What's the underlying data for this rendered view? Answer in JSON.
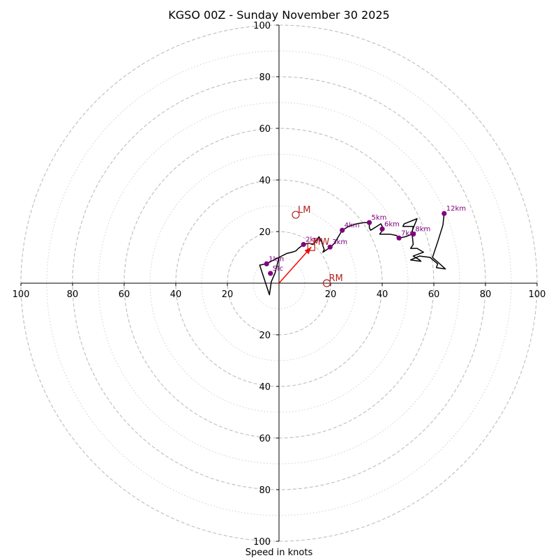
{
  "chart_data": {
    "type": "hodograph",
    "title": "KGSO 00Z - Sunday November 30 2025",
    "xlabel": "Speed in knots",
    "range": 100,
    "major_rings": [
      20,
      40,
      60,
      80,
      100
    ],
    "minor_rings": [
      10,
      30,
      50,
      70,
      90
    ],
    "ticks": [
      {
        "value": 100,
        "label": "100"
      },
      {
        "value": 80,
        "label": "80"
      },
      {
        "value": 60,
        "label": "60"
      },
      {
        "value": 40,
        "label": "40"
      },
      {
        "value": 20,
        "label": "20"
      }
    ],
    "trace_color": "#000000",
    "point_color": "#800080",
    "marker_color": "#b22222",
    "mean_wind_color": "#ff0000",
    "trace": [
      [
        0,
        10
      ],
      [
        -1.5,
        4
      ],
      [
        -3,
        0.5
      ],
      [
        -3.7,
        -4.5
      ],
      [
        -7.5,
        7
      ],
      [
        -5,
        7.5
      ],
      [
        -4,
        8
      ],
      [
        -2,
        9
      ],
      [
        0,
        10
      ],
      [
        3,
        11.5
      ],
      [
        5,
        12
      ],
      [
        6.5,
        12.5
      ],
      [
        7.5,
        13.5
      ],
      [
        9.5,
        15
      ],
      [
        11.5,
        15.5
      ],
      [
        13,
        15
      ],
      [
        14,
        16
      ],
      [
        15.5,
        18
      ],
      [
        16.5,
        16
      ],
      [
        17.5,
        13
      ],
      [
        17,
        12
      ],
      [
        20,
        14
      ],
      [
        21.5,
        15.5
      ],
      [
        23,
        18
      ],
      [
        24.5,
        20.5
      ],
      [
        27,
        22
      ],
      [
        30,
        23
      ],
      [
        33,
        23.5
      ],
      [
        35,
        23.5
      ],
      [
        35,
        21.5
      ],
      [
        35.5,
        20.5
      ],
      [
        39.5,
        23
      ],
      [
        40.5,
        21
      ],
      [
        39,
        19
      ],
      [
        43,
        19
      ],
      [
        45.5,
        18.5
      ],
      [
        46.5,
        17.5
      ],
      [
        49,
        18
      ],
      [
        51.5,
        19
      ],
      [
        52,
        22
      ],
      [
        48,
        22
      ],
      [
        48.5,
        23
      ],
      [
        53.5,
        25
      ],
      [
        51.5,
        20
      ],
      [
        52,
        15
      ],
      [
        51,
        13.5
      ],
      [
        53.5,
        13.5
      ],
      [
        56,
        12
      ],
      [
        52,
        10.5
      ],
      [
        54.5,
        9
      ],
      [
        55,
        8.5
      ],
      [
        51,
        9
      ],
      [
        54.5,
        10.5
      ],
      [
        58.5,
        10
      ],
      [
        61.5,
        7.5
      ],
      [
        61,
        6
      ],
      [
        64.5,
        5.5
      ],
      [
        59.5,
        10
      ],
      [
        61.5,
        16
      ],
      [
        63.5,
        22.5
      ],
      [
        64,
        27
      ]
    ],
    "height_points": [
      {
        "label": "Sfc",
        "u": -3.3,
        "v": 3.8
      },
      {
        "label": "1km",
        "u": -4.8,
        "v": 7.5
      },
      {
        "label": "2km",
        "u": 9.5,
        "v": 15
      },
      {
        "label": "3km",
        "u": 19.8,
        "v": 14
      },
      {
        "label": "4km",
        "u": 24.5,
        "v": 20.5
      },
      {
        "label": "5km",
        "u": 35,
        "v": 23.5
      },
      {
        "label": "6km",
        "u": 40,
        "v": 21
      },
      {
        "label": "7km",
        "u": 46.5,
        "v": 17.5
      },
      {
        "label": "8km",
        "u": 52,
        "v": 19
      },
      {
        "label": "12km",
        "u": 64,
        "v": 27
      }
    ],
    "storm_motion": [
      {
        "label": "LM",
        "u": 6.5,
        "v": 26.5
      },
      {
        "label": "RM",
        "u": 18.5,
        "v": 0
      }
    ],
    "mean_wind": {
      "label": "MW",
      "u": 12.5,
      "v": 14
    }
  }
}
